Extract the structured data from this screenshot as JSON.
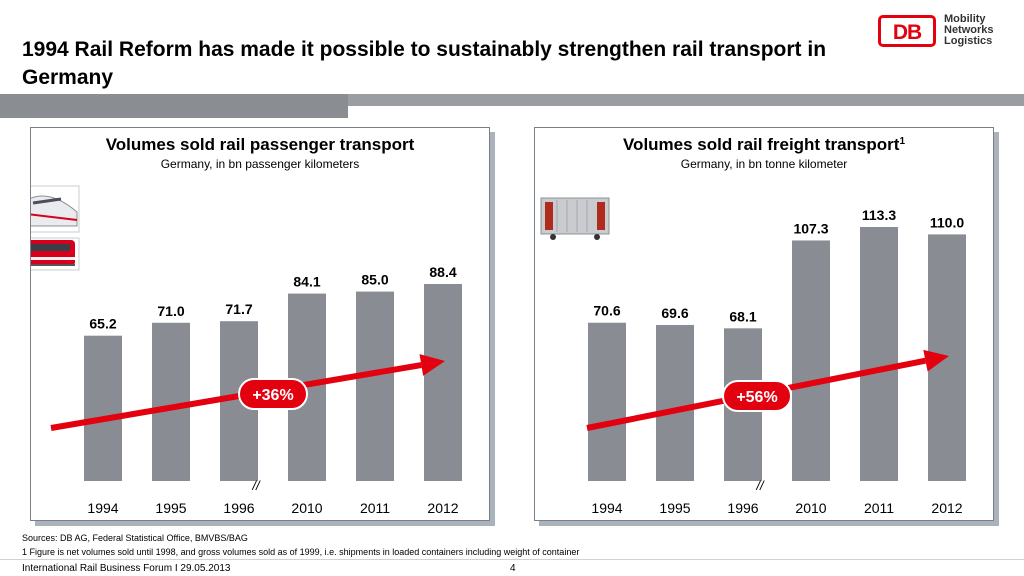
{
  "page": {
    "title": "1994 Rail Reform has made it possible to sustainably strengthen rail transport in Germany",
    "logo_text": "DB",
    "logo_tagline": [
      "Mobility",
      "Networks",
      "Logistics"
    ]
  },
  "colors": {
    "bar": "#898c93",
    "arrow": "#e3000f",
    "badge": "#e3000f",
    "brand": "#e3000f"
  },
  "icons": [
    "passenger-train-icon",
    "regional-train-icon",
    "freight-wagon-icon"
  ],
  "chart_data": [
    {
      "type": "bar",
      "title": "Volumes sold rail passenger transport",
      "subtitle": "Germany, in bn passenger kilometers",
      "categories": [
        "1994",
        "1995",
        "1996",
        "2010",
        "2011",
        "2012"
      ],
      "values": [
        65.2,
        71.0,
        71.7,
        84.1,
        85.0,
        88.4
      ],
      "value_labels": [
        "65.2",
        "71.0",
        "71.7",
        "84.1",
        "85.0",
        "88.4"
      ],
      "axis_break_label": "//",
      "growth_label": "+36%",
      "grid": false,
      "legend": "none"
    },
    {
      "type": "bar",
      "title": "Volumes sold rail freight transport",
      "title_superscript": "1",
      "subtitle": "Germany, in bn tonne kilometer",
      "categories": [
        "1994",
        "1995",
        "1996",
        "2010",
        "2011",
        "2012"
      ],
      "values": [
        70.6,
        69.6,
        68.1,
        107.3,
        113.3,
        110.0
      ],
      "value_labels": [
        "70.6",
        "69.6",
        "68.1",
        "107.3",
        "113.3",
        "110.0"
      ],
      "axis_break_label": "//",
      "growth_label": "+56%",
      "grid": false,
      "legend": "none"
    }
  ],
  "footnotes": {
    "sources": "Sources: DB AG, Federal Statistical Office, BMVBS/BAG",
    "note1": "1 Figure is net volumes sold until 1998, and gross volumes sold as of 1999, i.e. shipments in loaded containers including weight of container"
  },
  "footer": {
    "event": "International Rail Business Forum I 29.05.2013",
    "page_number": "4"
  }
}
